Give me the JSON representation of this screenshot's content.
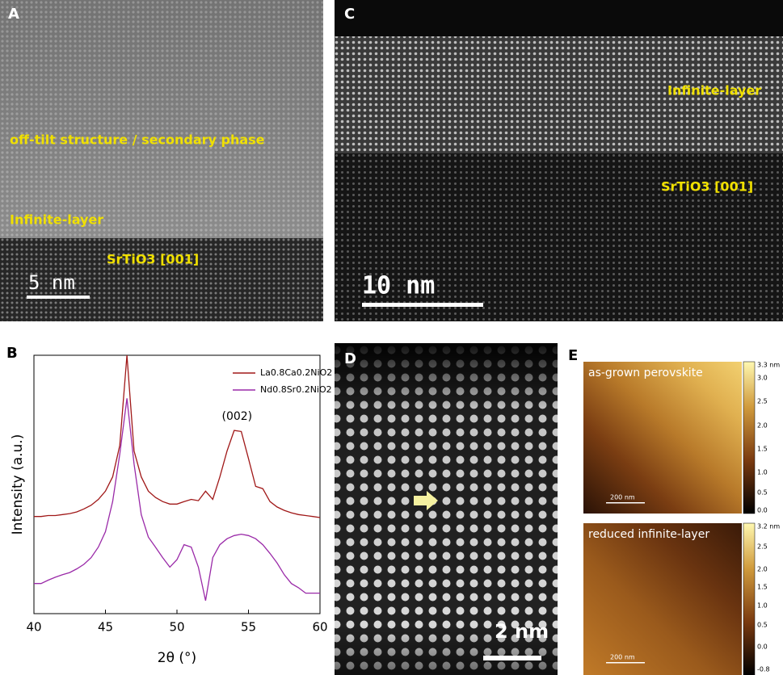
{
  "panels": {
    "A": {
      "label": "A",
      "annotations": [
        "off-tilt structure / secondary phase",
        "Infinite-layer",
        "SrTiO3 [001]"
      ],
      "scale_bar": "5 nm"
    },
    "C": {
      "label": "C",
      "annotations": [
        "Infinite-layer",
        "SrTiO3 [001]"
      ],
      "scale_bar": "10 nm"
    },
    "D": {
      "label": "D",
      "scale_bar": "2 nm"
    },
    "E": {
      "label": "E",
      "maps": [
        {
          "title": "as-grown perovskite",
          "scale_bar": "200 nm",
          "colorbar": [
            "3.3 nm",
            "3.0",
            "2.5",
            "2.0",
            "1.5",
            "1.0",
            "0.5",
            "0.0"
          ]
        },
        {
          "title": "reduced infinite-layer",
          "scale_bar": "200 nm",
          "colorbar": [
            "3.2 nm",
            "2.5",
            "2.0",
            "1.5",
            "1.0",
            "0.5",
            "0.0",
            "-0.8"
          ]
        }
      ]
    }
  },
  "chart_data": {
    "type": "line",
    "label": "B",
    "x_label": "2θ (°)",
    "y_label": "Intensity (a.u.)",
    "annotations": [
      {
        "text": "(002)",
        "x": 54.2
      }
    ],
    "xlim": [
      40,
      60
    ],
    "xticks": [
      40,
      45,
      50,
      55,
      60
    ],
    "ylim": [
      1,
      1000000
    ],
    "log_y": true,
    "legend": "top-right",
    "x": [
      40,
      40.5,
      41,
      41.5,
      42,
      42.5,
      43,
      43.5,
      44,
      44.5,
      45,
      45.5,
      46,
      46.5,
      47,
      47.5,
      48,
      48.5,
      49,
      49.5,
      50,
      50.5,
      51,
      51.5,
      52,
      52.5,
      53,
      53.5,
      54,
      54.5,
      55,
      55.5,
      56,
      56.5,
      57,
      57.5,
      58,
      58.5,
      59,
      59.5,
      60
    ],
    "series": [
      {
        "name": "La0.8Ca0.2NiO2",
        "color": "#a01818",
        "values": [
          180,
          180,
          190,
          190,
          200,
          210,
          230,
          270,
          330,
          450,
          700,
          1500,
          8000,
          1000000,
          6000,
          1500,
          700,
          500,
          400,
          350,
          350,
          400,
          450,
          420,
          700,
          450,
          1500,
          6000,
          18000,
          17000,
          4000,
          900,
          800,
          400,
          300,
          250,
          220,
          200,
          190,
          180,
          170
        ]
      },
      {
        "name": "Nd0.8Sr0.2NiO2",
        "color": "#9a2aa8",
        "values": [
          5,
          5,
          6,
          7,
          8,
          9,
          11,
          14,
          20,
          35,
          80,
          400,
          5000,
          100000,
          3000,
          200,
          60,
          35,
          20,
          12,
          18,
          40,
          35,
          12,
          2,
          20,
          40,
          55,
          65,
          70,
          65,
          55,
          40,
          25,
          15,
          8,
          5,
          4,
          3,
          3,
          3
        ]
      }
    ]
  }
}
